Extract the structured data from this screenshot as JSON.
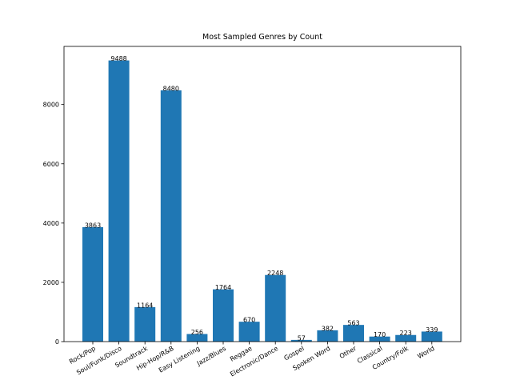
{
  "chart_data": {
    "type": "bar",
    "title": "Most Sampled Genres by Count",
    "xlabel": "",
    "ylabel": "",
    "categories": [
      "Rock/Pop",
      "Soul/Funk/Disco",
      "Soundtrack",
      "Hip-Hop/R&B",
      "Easy Listening",
      "Jazz/Blues",
      "Reggae",
      "Electronic/Dance",
      "Gospel",
      "Spoken Word",
      "Other",
      "Classical",
      "Country/Folk",
      "World"
    ],
    "values": [
      3863,
      9488,
      1164,
      8480,
      256,
      1764,
      670,
      2248,
      57,
      382,
      563,
      170,
      223,
      339
    ],
    "ylim": [
      0,
      9962
    ],
    "yticks": [
      0,
      2000,
      4000,
      6000,
      8000
    ],
    "bar_color": "#1f77b4",
    "grid": false,
    "data_labels": true
  }
}
